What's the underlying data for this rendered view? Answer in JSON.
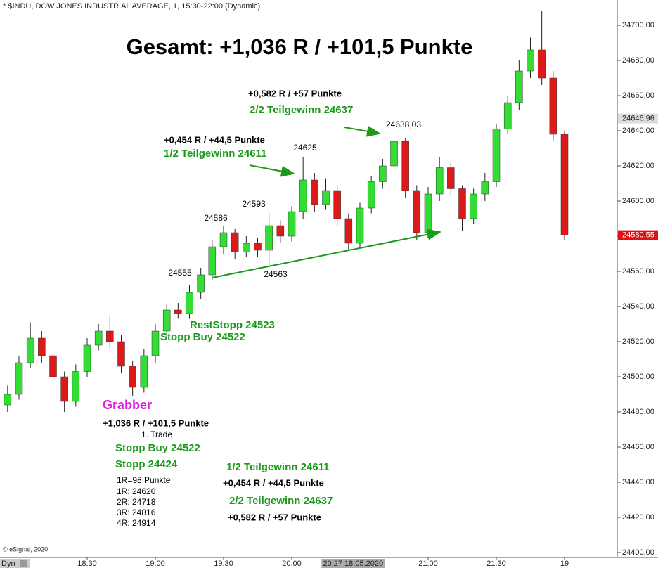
{
  "chart_data": {
    "type": "candlestick",
    "header": "* $INDU, DOW JONES INDUSTRIAL AVERAGE, 1, 15:30-22:00 (Dynamic)",
    "title": "Gesamt: +1,036 R / +101,5 Punkte",
    "x": [
      "17:55",
      "18:00",
      "18:05",
      "18:10",
      "18:15",
      "18:20",
      "18:25",
      "18:30",
      "18:35",
      "18:40",
      "18:45",
      "18:50",
      "18:55",
      "19:00",
      "19:05",
      "19:10",
      "19:15",
      "19:20",
      "19:25",
      "19:30",
      "19:35",
      "19:40",
      "19:45",
      "19:50",
      "19:55",
      "20:00",
      "20:05",
      "20:10",
      "20:15",
      "20:20",
      "20:25",
      "20:30",
      "20:35",
      "20:40",
      "20:45",
      "20:50",
      "20:55",
      "21:00",
      "21:05",
      "21:10",
      "21:15",
      "21:20",
      "21:25",
      "21:30",
      "21:35",
      "21:40",
      "21:45",
      "21:50",
      "21:55",
      "22:00"
    ],
    "open": [
      24484,
      24490,
      24508,
      24522,
      24512,
      24500,
      24486,
      24503,
      24518,
      24526,
      24520,
      24506,
      24494,
      24512,
      24526,
      24538,
      24536,
      24548,
      24558,
      24574,
      24582,
      24571,
      24576,
      24572,
      24586,
      24580,
      24594,
      24612,
      24598,
      24606,
      24590,
      24576,
      24596,
      24611,
      24620,
      24634,
      24606,
      24582,
      24604,
      24619,
      24607,
      24590,
      24604,
      24611,
      24641,
      24656,
      24674,
      24686,
      24670,
      24638
    ],
    "high": [
      24495,
      24512,
      24531,
      24526,
      24515,
      24503,
      24507,
      24522,
      24530,
      24535,
      24524,
      24509,
      24516,
      24530,
      24541,
      24542,
      24552,
      24562,
      24578,
      24586,
      24584,
      24580,
      24579,
      24593,
      24589,
      24597,
      24625,
      24616,
      24613,
      24609,
      24593,
      24599,
      24614,
      24624,
      24638.03,
      24636,
      24609,
      24608,
      24625,
      24622,
      24609,
      24607,
      24616,
      24644,
      24660,
      24680,
      24693,
      24708,
      24674,
      24640
    ],
    "low": [
      24480,
      24487,
      24505,
      24508,
      24496,
      24480,
      24483,
      24500,
      24515,
      24516,
      24502,
      24489,
      24491,
      24508,
      24522,
      24533,
      24533,
      24544,
      24555,
      24570,
      24567,
      24568,
      24568,
      24563,
      24576,
      24577,
      24590,
      24594,
      24595,
      24586,
      24572,
      24573,
      24593,
      24607,
      24617,
      24602,
      24578,
      24579,
      24600,
      24603,
      24583,
      24587,
      24600,
      24608,
      24638,
      24652,
      24670,
      24666,
      24634,
      24578
    ],
    "close": [
      24490,
      24508,
      24522,
      24512,
      24500,
      24486,
      24503,
      24518,
      24526,
      24520,
      24506,
      24494,
      24512,
      24526,
      24538,
      24536,
      24548,
      24558,
      24574,
      24582,
      24571,
      24576,
      24572,
      24586,
      24580,
      24594,
      24612,
      24598,
      24606,
      24590,
      24576,
      24596,
      24611,
      24620,
      24634,
      24606,
      24582,
      24604,
      24619,
      24607,
      24590,
      24604,
      24611,
      24641,
      24656,
      24674,
      24686,
      24670,
      24638,
      24580.55
    ],
    "up_color": "#33dd33",
    "down_color": "#dd1a1a",
    "ylim": [
      24397.2,
      24714.4
    ],
    "yticks": [
      {
        "value": 24400,
        "label": "24400,00"
      },
      {
        "value": 24420,
        "label": "24420,00"
      },
      {
        "value": 24440,
        "label": "24440,00"
      },
      {
        "value": 24460,
        "label": "24460,00"
      },
      {
        "value": 24480,
        "label": "24480,00"
      },
      {
        "value": 24500,
        "label": "24500,00"
      },
      {
        "value": 24520,
        "label": "24520,00"
      },
      {
        "value": 24540,
        "label": "24540,00"
      },
      {
        "value": 24560,
        "label": "24560,00"
      },
      {
        "value": 24580,
        "label": "24580,00"
      },
      {
        "value": 24600,
        "label": "24600,00"
      },
      {
        "value": 24620,
        "label": "24620,00"
      },
      {
        "value": 24640,
        "label": "24640,00"
      },
      {
        "value": 24660,
        "label": "24660,00"
      },
      {
        "value": 24680,
        "label": "24680,00"
      },
      {
        "value": 24700,
        "label": "24700,00"
      }
    ],
    "xticks": [
      "18:30",
      "19:00",
      "19:30",
      "20:00",
      "21:00",
      "21:30",
      {
        "value": "22:00",
        "label": "19"
      }
    ],
    "crosshair": {
      "value": "20:27",
      "label": "20:27 18.05.2020"
    },
    "price_markers": [
      {
        "value": 24646.96,
        "label": "24646,96"
      },
      {
        "value": 24580.55,
        "label": "24580,55"
      }
    ],
    "point_labels": [
      "24555",
      "24586",
      "24593",
      "24625",
      "24638,03",
      "24563"
    ],
    "annotations": [
      "+0,582 R / +57 Punkte",
      "2/2 Teilgewinn 24637",
      "+0,454 R / +44,5 Punkte",
      "1/2 Teilgewinn 24611",
      "RestStopp 24523",
      "Stopp Buy 24522",
      "Grabber",
      "+1,036 R / +101,5 Punkte",
      "1. Trade",
      "Stopp Buy 24522",
      "Stopp 24424",
      "1R=98 Punkte",
      "1R: 24620",
      "2R: 24718",
      "3R: 24816",
      "4R: 24914",
      "1/2 Teilgewinn 24611",
      "+0,454 R / +44,5 Punkte",
      "2/2 Teilgewinn 24637",
      "+0,582 R / +57 Punkte"
    ],
    "footer": "© eSignal, 2020",
    "mode": "Dyn"
  }
}
